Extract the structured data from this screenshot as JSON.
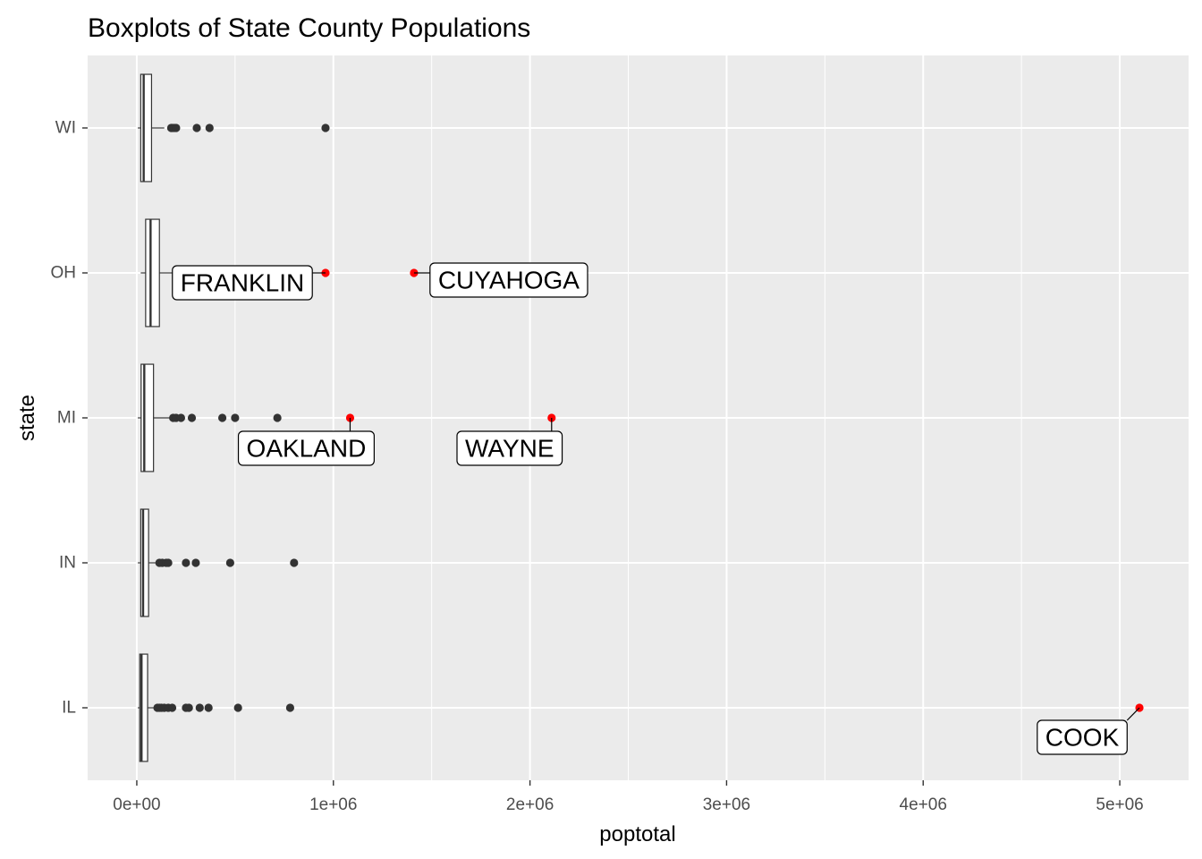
{
  "chart_data": {
    "type": "boxplot",
    "orientation": "horizontal",
    "title": "Boxplots of State County Populations",
    "xlabel": "poptotal",
    "ylabel": "state",
    "xlim": [
      -250000,
      5350000
    ],
    "x_ticks": [
      0,
      1000000,
      2000000,
      3000000,
      4000000,
      5000000
    ],
    "x_tick_labels": [
      "0e+00",
      "1e+06",
      "2e+06",
      "3e+06",
      "4e+06",
      "5e+06"
    ],
    "categories": [
      "IL",
      "IN",
      "MI",
      "OH",
      "WI"
    ],
    "grid": true,
    "colors": {
      "panel": "#ebebeb",
      "grid": "#ffffff",
      "box_outline": "#333333",
      "outlier": "#333333",
      "highlight": "#ff0000",
      "label_bg": "#ffffff"
    },
    "boxes": [
      {
        "state": "IL",
        "min": 5000,
        "q1": 15000,
        "median": 24000,
        "q3": 55000,
        "max": 95000,
        "outliers": [
          105000,
          115000,
          125000,
          140000,
          160000,
          180000,
          250000,
          265000,
          320000,
          365000,
          515000,
          780000
        ]
      },
      {
        "state": "IN",
        "min": 5000,
        "q1": 20000,
        "median": 32000,
        "q3": 60000,
        "max": 100000,
        "outliers": [
          115000,
          130000,
          150000,
          160000,
          250000,
          300000,
          475000,
          800000
        ]
      },
      {
        "state": "MI",
        "min": 5000,
        "q1": 22000,
        "median": 38000,
        "q3": 85000,
        "max": 170000,
        "outliers": [
          185000,
          200000,
          225000,
          280000,
          435000,
          500000,
          715000
        ]
      },
      {
        "state": "OH",
        "min": 20000,
        "q1": 45000,
        "median": 70000,
        "q3": 115000,
        "max": 180000,
        "outliers": []
      },
      {
        "state": "WI",
        "min": 5000,
        "q1": 20000,
        "median": 35000,
        "q3": 75000,
        "max": 140000,
        "outliers": [
          175000,
          180000,
          190000,
          200000,
          305000,
          370000,
          960000
        ]
      }
    ],
    "highlighted": [
      {
        "state": "IL",
        "county": "COOK",
        "value": 5100000
      },
      {
        "state": "MI",
        "county": "OAKLAND",
        "value": 1085000
      },
      {
        "state": "MI",
        "county": "WAYNE",
        "value": 2110000
      },
      {
        "state": "OH",
        "county": "FRANKLIN",
        "value": 960000
      },
      {
        "state": "OH",
        "county": "CUYAHOGA",
        "value": 1410000
      }
    ]
  }
}
